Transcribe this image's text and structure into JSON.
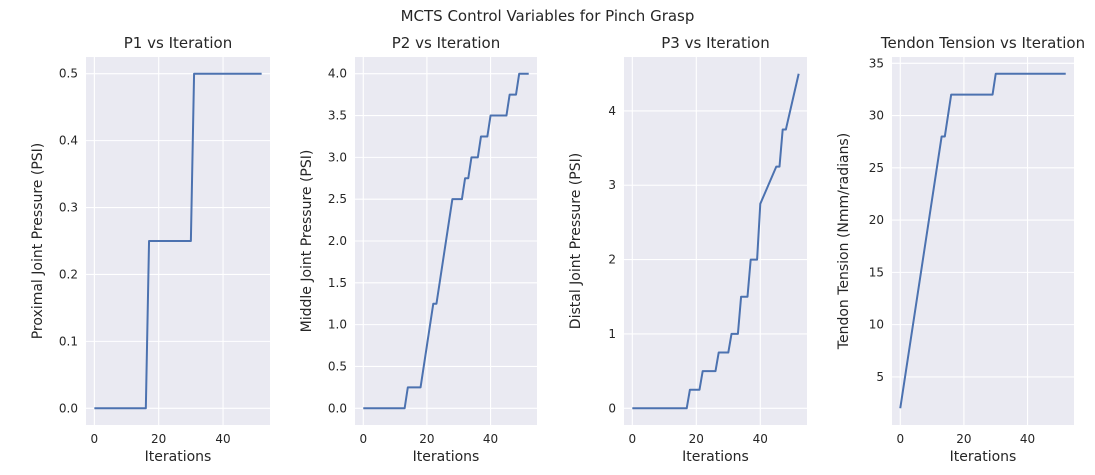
{
  "figure": {
    "suptitle": "MCTS Control Variables for Pinch Grasp"
  },
  "colors": {
    "line": "#4c72b0",
    "plot_bg": "#eaeaf2",
    "grid": "#ffffff",
    "text": "#262626"
  },
  "chart_data": [
    {
      "type": "line",
      "title": "P1 vs Iteration",
      "xlabel": "Iterations",
      "ylabel": "Proximal Joint Pressure (PSI)",
      "xlim": [
        -2.6,
        54.6
      ],
      "ylim": [
        -0.025,
        0.525
      ],
      "xticks": [
        0,
        20,
        40
      ],
      "yticks": [
        0.0,
        0.1,
        0.2,
        0.3,
        0.4,
        0.5
      ],
      "ytick_labels": [
        "0.0",
        "0.1",
        "0.2",
        "0.3",
        "0.4",
        "0.5"
      ],
      "grid": true,
      "series": [
        {
          "x": [
            0,
            16,
            17,
            30,
            31,
            52
          ],
          "y": [
            0,
            0,
            0.25,
            0.25,
            0.5,
            0.5
          ]
        }
      ]
    },
    {
      "type": "line",
      "title": "P2 vs Iteration",
      "xlabel": "Iterations",
      "ylabel": "Middle Joint Pressure (PSI)",
      "xlim": [
        -2.6,
        54.6
      ],
      "ylim": [
        -0.2,
        4.2
      ],
      "xticks": [
        0,
        20,
        40
      ],
      "yticks": [
        0.0,
        0.5,
        1.0,
        1.5,
        2.0,
        2.5,
        3.0,
        3.5,
        4.0
      ],
      "ytick_labels": [
        "0.0",
        "0.5",
        "1.0",
        "1.5",
        "2.0",
        "2.5",
        "3.0",
        "3.5",
        "4.0"
      ],
      "grid": true,
      "series": [
        {
          "x": [
            0,
            13,
            14,
            18,
            22,
            23,
            28,
            31,
            32,
            33,
            34,
            36,
            37,
            39,
            40,
            45,
            46,
            48,
            49,
            52
          ],
          "y": [
            0,
            0,
            0.25,
            0.25,
            1.25,
            1.25,
            2.5,
            2.5,
            2.75,
            2.75,
            3.0,
            3.0,
            3.25,
            3.25,
            3.5,
            3.5,
            3.75,
            3.75,
            4.0,
            4.0
          ]
        }
      ]
    },
    {
      "type": "line",
      "title": "P3 vs Iteration",
      "xlabel": "Iterations",
      "ylabel": "Distal Joint Pressure (PSI)",
      "xlim": [
        -2.6,
        54.6
      ],
      "ylim": [
        -0.225,
        4.725
      ],
      "xticks": [
        0,
        20,
        40
      ],
      "yticks": [
        0,
        1,
        2,
        3,
        4
      ],
      "ytick_labels": [
        "0",
        "1",
        "2",
        "3",
        "4"
      ],
      "grid": true,
      "series": [
        {
          "x": [
            0,
            17,
            18,
            21,
            22,
            26,
            27,
            30,
            31,
            33,
            34,
            36,
            37,
            39,
            40,
            45,
            46,
            47,
            48,
            52
          ],
          "y": [
            0,
            0,
            0.25,
            0.25,
            0.5,
            0.5,
            0.75,
            0.75,
            1.0,
            1.0,
            1.5,
            1.5,
            2.0,
            2.0,
            2.75,
            3.25,
            3.25,
            3.75,
            3.75,
            4.5
          ]
        }
      ]
    },
    {
      "type": "line",
      "title": "Tendon Tension vs Iteration",
      "xlabel": "Iterations",
      "ylabel": "Tendon Tension (Nmm/radians)",
      "xlim": [
        -2.6,
        54.6
      ],
      "ylim": [
        0.4,
        35.6
      ],
      "xticks": [
        0,
        20,
        40
      ],
      "yticks": [
        5,
        10,
        15,
        20,
        25,
        30,
        35
      ],
      "ytick_labels": [
        "5",
        "10",
        "15",
        "20",
        "25",
        "30",
        "35"
      ],
      "grid": true,
      "series": [
        {
          "x": [
            0,
            13,
            14,
            16,
            29,
            30,
            52
          ],
          "y": [
            2,
            28,
            28,
            32,
            32,
            34,
            34
          ]
        }
      ]
    }
  ]
}
